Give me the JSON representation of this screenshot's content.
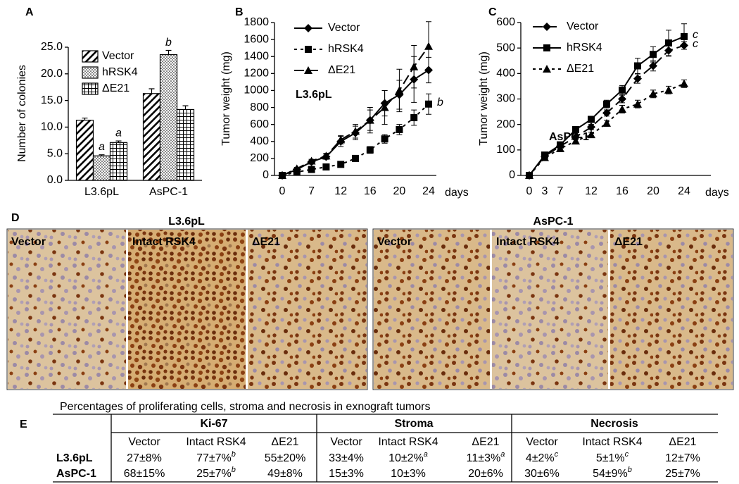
{
  "panel_labels": [
    "A",
    "B",
    "C",
    "D",
    "E"
  ],
  "chart_data": [
    {
      "type": "bar",
      "ylabel": "Number of colonies",
      "categories": [
        "L3.6pL",
        "AsPC-1"
      ],
      "ylim": [
        0,
        25
      ],
      "yticks": [
        {
          "value": 0,
          "label": "0.0"
        },
        {
          "value": 5,
          "label": "5.0"
        },
        {
          "value": 10,
          "label": "10.0"
        },
        {
          "value": 15,
          "label": "15.0"
        },
        {
          "value": 20,
          "label": "20.0"
        },
        {
          "value": 25,
          "label": "25.0"
        }
      ],
      "legend": "upper left",
      "series": [
        {
          "name": "Vector",
          "color": "#000000",
          "pattern": "hatch",
          "values": [
            11.3,
            16.3
          ],
          "errors": [
            0.4,
            0.9
          ]
        },
        {
          "name": "hRSK4",
          "color": "#000000",
          "pattern": "dots",
          "values": [
            4.6,
            23.6
          ],
          "errors": [
            0.2,
            0.8
          ]
        },
        {
          "name": "ΔE21",
          "color": "#000000",
          "pattern": "grid",
          "values": [
            7.1,
            13.3
          ],
          "errors": [
            0.3,
            0.7
          ]
        }
      ],
      "annotations": [
        {
          "text": "a",
          "series": "hRSK4",
          "category": "L3.6pL"
        },
        {
          "text": "a",
          "series": "ΔE21",
          "category": "L3.6pL"
        },
        {
          "text": "b",
          "series": "hRSK4",
          "category": "AsPC-1"
        }
      ]
    },
    {
      "type": "line",
      "ylabel": "Tumor weight (mg)",
      "xlabel": "days",
      "inset_label": "L3.6pL",
      "categories": [
        "0",
        null,
        "7",
        null,
        "12",
        null,
        "16",
        null,
        "20",
        null,
        "24"
      ],
      "ylim": [
        0,
        1800
      ],
      "yticks": [
        0,
        200,
        400,
        600,
        800,
        1000,
        1200,
        1400,
        1600,
        1800
      ],
      "legend": "upper left",
      "series": [
        {
          "name": "Vector",
          "color": "#000000",
          "line_style": "solid",
          "marker": "diamond",
          "values": [
            0,
            70,
            160,
            220,
            400,
            500,
            650,
            850,
            950,
            1130,
            1240
          ],
          "errors": [
            0,
            15,
            20,
            30,
            60,
            80,
            150,
            150,
            170,
            270,
            150
          ]
        },
        {
          "name": "hRSK4",
          "color": "#000000",
          "line_style": "dotted",
          "marker": "square",
          "values": [
            0,
            40,
            70,
            100,
            130,
            200,
            300,
            430,
            540,
            680,
            840
          ],
          "errors": [
            0,
            10,
            15,
            20,
            20,
            30,
            40,
            50,
            60,
            90,
            120
          ]
        },
        {
          "name": "ΔE21",
          "color": "#000000",
          "line_style": "dashed",
          "marker": "triangle",
          "values": [
            0,
            80,
            170,
            230,
            420,
            520,
            650,
            800,
            1000,
            1280,
            1520
          ],
          "errors": [
            0,
            15,
            20,
            30,
            50,
            80,
            120,
            200,
            250,
            250,
            290
          ]
        }
      ],
      "annotations": [
        {
          "text": "b",
          "series": "hRSK4"
        }
      ]
    },
    {
      "type": "line",
      "ylabel": "Tumor weight (mg)",
      "xlabel": "days",
      "inset_label": "AsPC-1",
      "categories": [
        "0",
        "3",
        "7",
        null,
        "12",
        null,
        "16",
        null,
        "20",
        null,
        "24"
      ],
      "ylim": [
        0,
        600
      ],
      "yticks": [
        0,
        100,
        200,
        300,
        400,
        500,
        600
      ],
      "legend": "upper left",
      "series": [
        {
          "name": "Vector",
          "color": "#000000",
          "line_style": "dashed",
          "marker": "diamond",
          "values": [
            0,
            75,
            115,
            150,
            190,
            245,
            300,
            380,
            430,
            490,
            510
          ],
          "errors": [
            0,
            5,
            8,
            10,
            10,
            12,
            15,
            18,
            20,
            22,
            15
          ]
        },
        {
          "name": "hRSK4",
          "color": "#000000",
          "line_style": "solid",
          "marker": "square",
          "values": [
            0,
            80,
            120,
            180,
            220,
            280,
            335,
            430,
            475,
            520,
            545
          ],
          "errors": [
            0,
            5,
            8,
            10,
            12,
            15,
            18,
            30,
            30,
            50,
            50
          ]
        },
        {
          "name": "ΔE21",
          "color": "#000000",
          "line_style": "dotted",
          "marker": "triangle",
          "values": [
            0,
            70,
            105,
            135,
            160,
            205,
            260,
            280,
            320,
            335,
            360
          ],
          "errors": [
            0,
            5,
            8,
            10,
            10,
            12,
            15,
            15,
            15,
            15,
            15
          ]
        }
      ],
      "annotations": [
        {
          "text": "c",
          "series": "hRSK4"
        },
        {
          "text": "c",
          "series": "Vector"
        }
      ]
    }
  ],
  "micrographs": {
    "groups": [
      {
        "title": "L3.6pL",
        "panels": [
          "Vector",
          "Intact RSK4",
          "ΔE21"
        ]
      },
      {
        "title": "AsPC-1",
        "panels": [
          "Vector",
          "Intact RSK4",
          "ΔE21"
        ]
      }
    ]
  },
  "table": {
    "title": "Percentages of proliferating cells, stroma and necrosis in exnograft tumors",
    "groups": [
      "Ki-67",
      "Stroma",
      "Necrosis"
    ],
    "columns": [
      "Vector",
      "Intact RSK4",
      "ΔE21",
      "Vector",
      "Intact RSK4",
      "ΔE21",
      "Vector",
      "Intact RSK4",
      "ΔE21"
    ],
    "rows": [
      {
        "label": "L3.6pL",
        "cells": [
          "27±8%",
          {
            "text": "77±7%",
            "sup": "b"
          },
          "55±20%",
          "33±4%",
          {
            "text": "10±2%",
            "sup": "a"
          },
          {
            "text": "11±3%",
            "sup": "a"
          },
          {
            "text": "4±2%",
            "sup": "c"
          },
          {
            "text": "5±1%",
            "sup": "c"
          },
          "12±7%"
        ]
      },
      {
        "label": "AsPC-1",
        "cells": [
          "68±15%",
          {
            "text": "25±7%",
            "sup": "b"
          },
          "49±8%",
          "15±3%",
          "10±3%",
          "20±6%",
          "30±6%",
          {
            "text": "54±9%",
            "sup": "b"
          },
          "25±7%"
        ]
      }
    ]
  }
}
